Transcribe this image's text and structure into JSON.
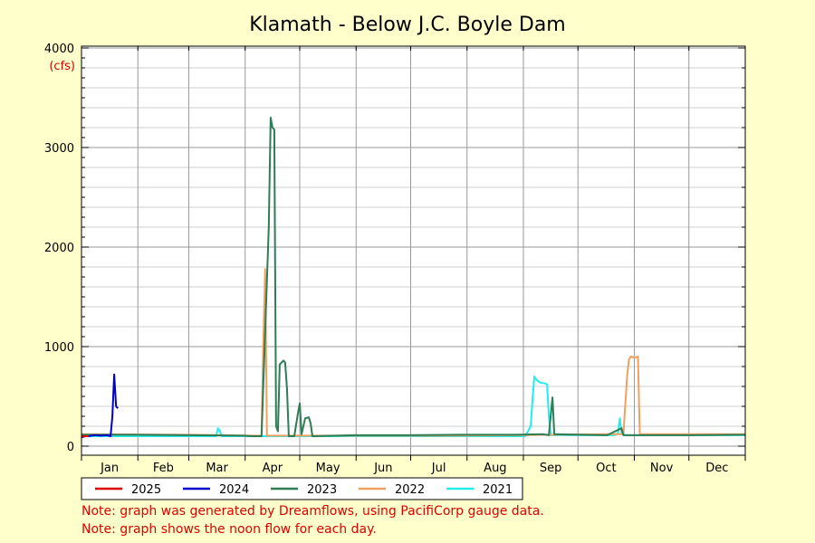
{
  "chart_data": {
    "type": "line",
    "title": "Klamath - Below J.C. Boyle Dam",
    "ylabel": "(cfs)",
    "ylim": [
      0,
      4000
    ],
    "y_ticks": [
      0,
      1000,
      2000,
      3000,
      4000
    ],
    "x_axis": "day of year",
    "xlim": [
      1,
      366
    ],
    "months": [
      "Jan",
      "Feb",
      "Mar",
      "Apr",
      "May",
      "Jun",
      "Jul",
      "Aug",
      "Sep",
      "Oct",
      "Nov",
      "Dec"
    ],
    "grid": true,
    "legend_placement": "bottom",
    "series": [
      {
        "name": "2025",
        "color": "#dd0000",
        "points": [
          [
            1,
            100
          ],
          [
            3,
            100
          ],
          [
            5,
            100
          ]
        ]
      },
      {
        "name": "2024",
        "color": "#0000cc",
        "points": [
          [
            1,
            90
          ],
          [
            3,
            100
          ],
          [
            5,
            100
          ],
          [
            8,
            110
          ],
          [
            12,
            105
          ],
          [
            15,
            110
          ],
          [
            17,
            100
          ],
          [
            18,
            300
          ],
          [
            19,
            720
          ],
          [
            20,
            400
          ],
          [
            21,
            380
          ]
        ]
      },
      {
        "name": "2023",
        "color": "#2e7d55",
        "points": [
          [
            1,
            115
          ],
          [
            30,
            115
          ],
          [
            60,
            110
          ],
          [
            90,
            105
          ],
          [
            95,
            100
          ],
          [
            100,
            100
          ],
          [
            104,
            2200
          ],
          [
            105,
            3300
          ],
          [
            106,
            3200
          ],
          [
            107,
            3180
          ],
          [
            108,
            200
          ],
          [
            109,
            150
          ],
          [
            110,
            820
          ],
          [
            112,
            860
          ],
          [
            113,
            840
          ],
          [
            114,
            580
          ],
          [
            115,
            100
          ],
          [
            118,
            100
          ],
          [
            120,
            330
          ],
          [
            121,
            430
          ],
          [
            122,
            120
          ],
          [
            124,
            280
          ],
          [
            126,
            290
          ],
          [
            127,
            230
          ],
          [
            128,
            100
          ],
          [
            150,
            110
          ],
          [
            180,
            110
          ],
          [
            210,
            115
          ],
          [
            240,
            115
          ],
          [
            255,
            120
          ],
          [
            258,
            110
          ],
          [
            260,
            490
          ],
          [
            261,
            120
          ],
          [
            290,
            110
          ],
          [
            298,
            180
          ],
          [
            299,
            110
          ],
          [
            330,
            110
          ],
          [
            366,
            115
          ]
        ]
      },
      {
        "name": "2022",
        "color": "#f0a060",
        "points": [
          [
            1,
            120
          ],
          [
            60,
            115
          ],
          [
            95,
            105
          ],
          [
            100,
            105
          ],
          [
            101,
            1050
          ],
          [
            102,
            1780
          ],
          [
            103,
            105
          ],
          [
            150,
            105
          ],
          [
            200,
            105
          ],
          [
            240,
            110
          ],
          [
            260,
            115
          ],
          [
            290,
            120
          ],
          [
            299,
            120
          ],
          [
            301,
            700
          ],
          [
            302,
            870
          ],
          [
            303,
            900
          ],
          [
            305,
            890
          ],
          [
            307,
            900
          ],
          [
            308,
            120
          ],
          [
            366,
            120
          ]
        ]
      },
      {
        "name": "2021",
        "color": "#22eeee",
        "points": [
          [
            1,
            100
          ],
          [
            70,
            100
          ],
          [
            75,
            100
          ],
          [
            76,
            180
          ],
          [
            77,
            160
          ],
          [
            78,
            100
          ],
          [
            150,
            100
          ],
          [
            200,
            100
          ],
          [
            245,
            100
          ],
          [
            248,
            200
          ],
          [
            249,
            460
          ],
          [
            250,
            700
          ],
          [
            251,
            670
          ],
          [
            253,
            640
          ],
          [
            256,
            630
          ],
          [
            257,
            620
          ],
          [
            258,
            300
          ],
          [
            259,
            110
          ],
          [
            294,
            110
          ],
          [
            296,
            130
          ],
          [
            297,
            280
          ],
          [
            298,
            130
          ],
          [
            300,
            110
          ],
          [
            366,
            110
          ]
        ]
      }
    ],
    "notes": [
      "Note: graph was generated by Dreamflows, using PacifiCorp gauge data.",
      "Note: graph shows the noon flow for each day."
    ]
  }
}
